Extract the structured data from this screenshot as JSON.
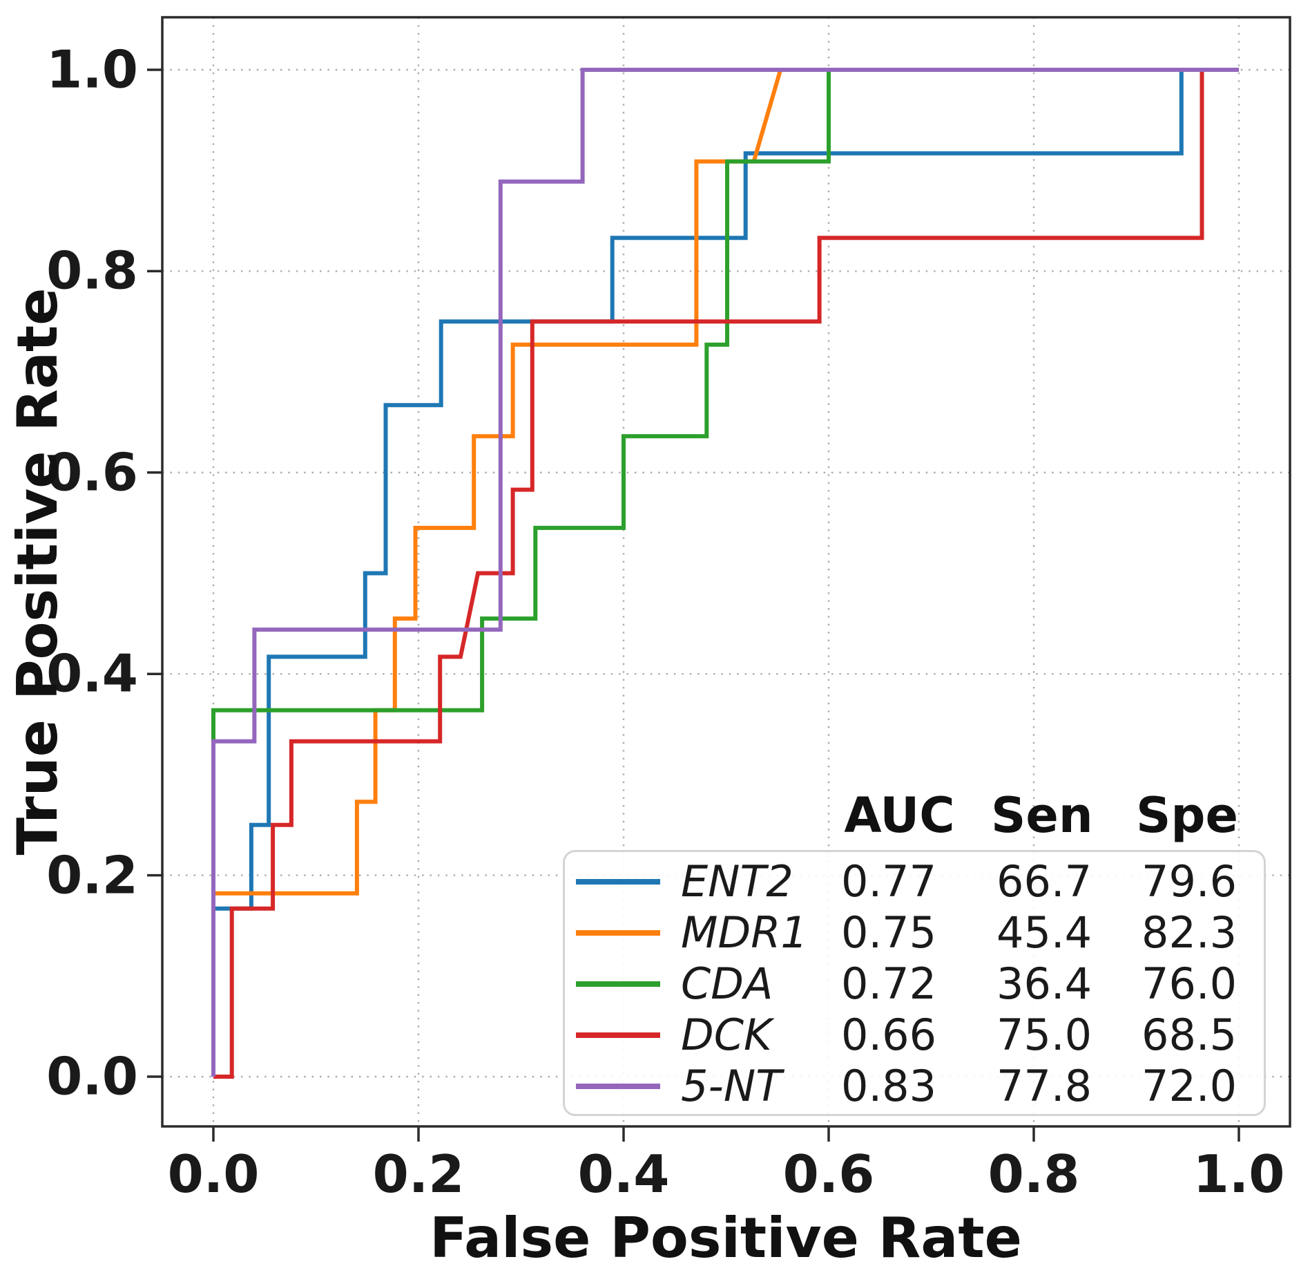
{
  "chart_data": {
    "type": "line",
    "subtype": "roc-step-curves",
    "title": "",
    "xlabel": "False Positive Rate",
    "ylabel": "True Positive Rate",
    "xlim": [
      -0.05,
      1.05
    ],
    "ylim": [
      -0.05,
      1.05
    ],
    "grid": "dotted",
    "grid_color": "#aaaaaa",
    "frame_color": "#2b2b2b",
    "x_ticks": [
      0.0,
      0.2,
      0.4,
      0.6,
      0.8,
      1.0
    ],
    "x_tick_labels": [
      "0.0",
      "0.2",
      "0.4",
      "0.6",
      "0.8",
      "1.0"
    ],
    "y_ticks": [
      0.0,
      0.2,
      0.4,
      0.6,
      0.8,
      1.0
    ],
    "y_tick_labels": [
      "0.0",
      "0.2",
      "0.4",
      "0.6",
      "0.8",
      "1.0"
    ],
    "legend": {
      "position": "lower right",
      "columns": [
        "AUC",
        "Sen",
        "Spe"
      ]
    },
    "series": [
      {
        "name": "ENT2",
        "color": "#1f77b4",
        "auc": "0.77",
        "sen": "66.7",
        "spe": "79.6",
        "points": [
          [
            0,
            0
          ],
          [
            0,
            0.167
          ],
          [
            0.037,
            0.167
          ],
          [
            0.037,
            0.25
          ],
          [
            0.054,
            0.25
          ],
          [
            0.054,
            0.417
          ],
          [
            0.148,
            0.417
          ],
          [
            0.148,
            0.5
          ],
          [
            0.168,
            0.5
          ],
          [
            0.168,
            0.667
          ],
          [
            0.222,
            0.667
          ],
          [
            0.222,
            0.75
          ],
          [
            0.389,
            0.75
          ],
          [
            0.389,
            0.833
          ],
          [
            0.519,
            0.833
          ],
          [
            0.519,
            0.917
          ],
          [
            0.944,
            0.917
          ],
          [
            0.944,
            1.0
          ],
          [
            1.0,
            1.0
          ]
        ]
      },
      {
        "name": "MDR1",
        "color": "#ff7f0e",
        "auc": "0.75",
        "sen": "45.4",
        "spe": "82.3",
        "points": [
          [
            0,
            0
          ],
          [
            0,
            0.182
          ],
          [
            0.14,
            0.182
          ],
          [
            0.14,
            0.273
          ],
          [
            0.158,
            0.273
          ],
          [
            0.158,
            0.364
          ],
          [
            0.177,
            0.364
          ],
          [
            0.177,
            0.455
          ],
          [
            0.197,
            0.455
          ],
          [
            0.197,
            0.545
          ],
          [
            0.254,
            0.545
          ],
          [
            0.254,
            0.636
          ],
          [
            0.292,
            0.636
          ],
          [
            0.292,
            0.727
          ],
          [
            0.471,
            0.727
          ],
          [
            0.471,
            0.909
          ],
          [
            0.527,
            0.909
          ],
          [
            0.553,
            1.0
          ],
          [
            1.0,
            1.0
          ]
        ]
      },
      {
        "name": "CDA",
        "color": "#2ca02c",
        "auc": "0.72",
        "sen": "36.4",
        "spe": "76.0",
        "points": [
          [
            0,
            0
          ],
          [
            0,
            0.364
          ],
          [
            0.262,
            0.364
          ],
          [
            0.262,
            0.455
          ],
          [
            0.314,
            0.455
          ],
          [
            0.314,
            0.545
          ],
          [
            0.4,
            0.545
          ],
          [
            0.4,
            0.636
          ],
          [
            0.481,
            0.636
          ],
          [
            0.481,
            0.727
          ],
          [
            0.501,
            0.727
          ],
          [
            0.501,
            0.909
          ],
          [
            0.6,
            0.909
          ],
          [
            0.6,
            1.0
          ],
          [
            1.0,
            1.0
          ]
        ]
      },
      {
        "name": "DCK",
        "color": "#d62728",
        "auc": "0.66",
        "sen": "75.0",
        "spe": "68.5",
        "points": [
          [
            0,
            0
          ],
          [
            0.018,
            0
          ],
          [
            0.018,
            0.167
          ],
          [
            0.058,
            0.167
          ],
          [
            0.058,
            0.25
          ],
          [
            0.076,
            0.25
          ],
          [
            0.076,
            0.333
          ],
          [
            0.221,
            0.333
          ],
          [
            0.221,
            0.417
          ],
          [
            0.241,
            0.417
          ],
          [
            0.258,
            0.5
          ],
          [
            0.292,
            0.5
          ],
          [
            0.292,
            0.583
          ],
          [
            0.311,
            0.583
          ],
          [
            0.311,
            0.75
          ],
          [
            0.591,
            0.75
          ],
          [
            0.591,
            0.833
          ],
          [
            0.964,
            0.833
          ],
          [
            0.964,
            1.0
          ],
          [
            1.0,
            1.0
          ]
        ]
      },
      {
        "name": "5-NT",
        "color": "#9467bd",
        "auc": "0.83",
        "sen": "77.8",
        "spe": "72.0",
        "points": [
          [
            0,
            0
          ],
          [
            0,
            0.333
          ],
          [
            0.04,
            0.333
          ],
          [
            0.04,
            0.444
          ],
          [
            0.28,
            0.444
          ],
          [
            0.28,
            0.889
          ],
          [
            0.36,
            0.889
          ],
          [
            0.36,
            1.0
          ],
          [
            1.0,
            1.0
          ]
        ]
      }
    ]
  }
}
